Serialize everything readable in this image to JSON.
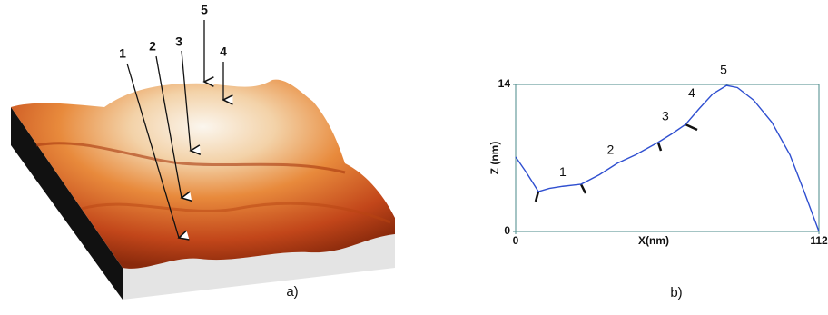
{
  "panel_a": {
    "labels": [
      "1",
      "2",
      "3",
      "4",
      "5"
    ],
    "caption": "a)"
  },
  "chart_data": {
    "type": "line",
    "caption": "b)",
    "xlabel": "X(nm)",
    "ylabel": "Z (nm)",
    "x": [
      0,
      4,
      8.4,
      12.4,
      17.4,
      24.2,
      30.9,
      37.6,
      44.3,
      52.7,
      57.7,
      62.8,
      67.8,
      72.8,
      77.9,
      81.9,
      87.9,
      94.6,
      101.3,
      106.4,
      112
    ],
    "series": [
      {
        "color": "#2f4fd0",
        "values": [
          7.1,
          5.6,
          3.8,
          4.1,
          4.3,
          4.5,
          5.4,
          6.5,
          7.3,
          8.5,
          9.3,
          10.2,
          11.7,
          13.1,
          13.9,
          13.7,
          12.5,
          10.4,
          7.3,
          3.9,
          0
        ]
      }
    ],
    "xlim": [
      0,
      112
    ],
    "ylim": [
      0,
      14
    ],
    "xticks": [
      0,
      112
    ],
    "yticks": [
      0,
      14
    ],
    "annotations": [
      {
        "text": "1",
        "x": 17.4,
        "y": 5.6
      },
      {
        "text": "2",
        "x": 35,
        "y": 7.7
      },
      {
        "text": "3",
        "x": 55.3,
        "y": 10.9
      },
      {
        "text": "4",
        "x": 65,
        "y": 13.1
      },
      {
        "text": "5",
        "x": 76.8,
        "y": 15.3
      }
    ]
  }
}
